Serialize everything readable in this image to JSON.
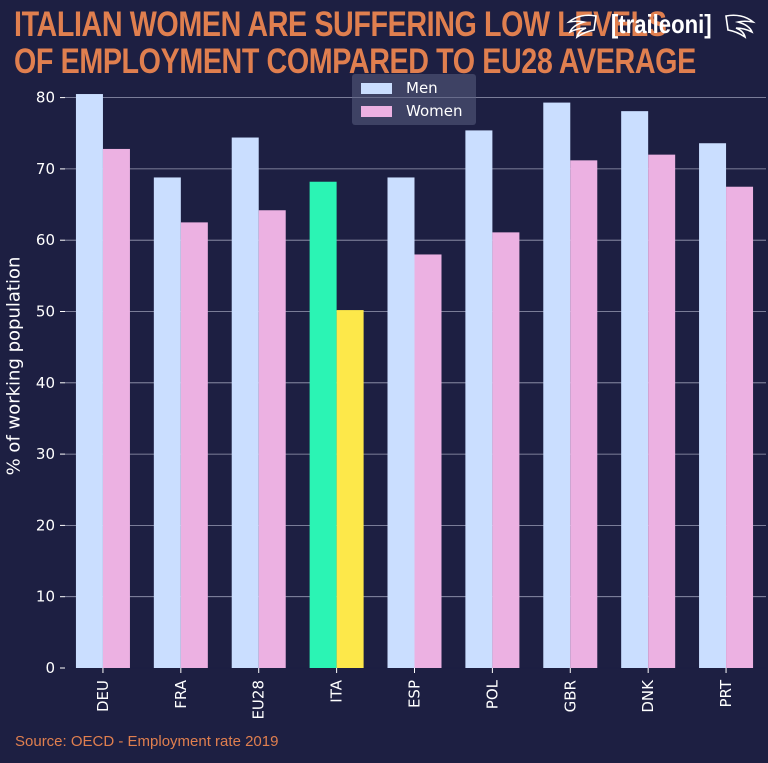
{
  "title_lines": [
    "Italian women are suffering low levels",
    "of employment compared to EU28 average"
  ],
  "brand": "[traileoni]",
  "source": "Source: OECD - Employment rate 2019",
  "colors": {
    "background": "#1d1f42",
    "men": "#cadeff",
    "women": "#ecb1e2",
    "ita_men": "#2bf4b4",
    "ita_women": "#fde84a",
    "title": "#e07f4f"
  },
  "chart_data": {
    "type": "bar",
    "categories": [
      "DEU",
      "FRA",
      "EU28",
      "ITA",
      "ESP",
      "POL",
      "GBR",
      "DNK",
      "PRT"
    ],
    "series": [
      {
        "name": "Men",
        "values": [
          80.5,
          68.8,
          74.4,
          68.2,
          68.8,
          75.4,
          79.3,
          78.1,
          73.6
        ]
      },
      {
        "name": "Women",
        "values": [
          72.8,
          62.5,
          64.2,
          50.2,
          58.0,
          61.1,
          71.2,
          72.0,
          67.5
        ]
      }
    ],
    "highlight_category": "ITA",
    "ylabel": "% of working population",
    "ylim": [
      0,
      82
    ],
    "yticks": [
      0,
      10,
      20,
      30,
      40,
      50,
      60,
      70,
      80
    ],
    "grid": "horizontal",
    "legend_position": "top-center"
  }
}
